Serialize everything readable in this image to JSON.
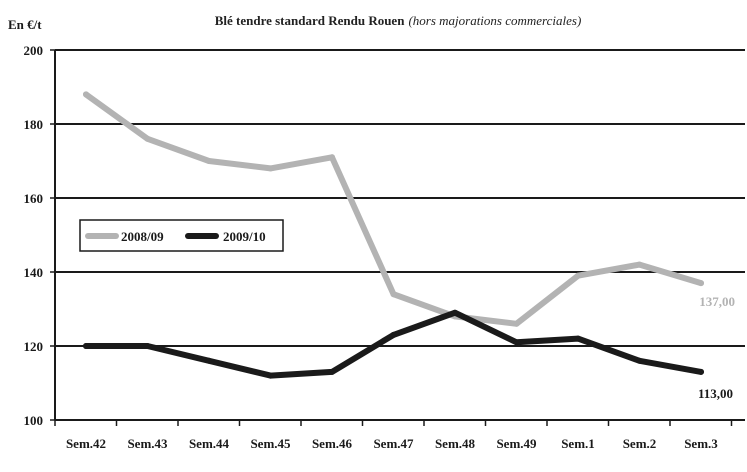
{
  "chart_data": {
    "type": "line",
    "title": "Blé tendre standard Rendu Rouen",
    "subtitle": "(hors majorations commerciales)",
    "ylabel": "En €/t",
    "xlabel": "",
    "ylim": [
      100,
      200
    ],
    "yticks": [
      100,
      120,
      140,
      160,
      180,
      200
    ],
    "categories": [
      "Sem.42",
      "Sem.43",
      "Sem.44",
      "Sem.45",
      "Sem.46",
      "Sem.47",
      "Sem.48",
      "Sem.49",
      "Sem.1",
      "Sem.2",
      "Sem.3"
    ],
    "grid": true,
    "legend_position": "middle-left",
    "series": [
      {
        "name": "2008/09",
        "color": "#b3b3b3",
        "values": [
          188,
          176,
          170,
          168,
          171,
          134,
          128,
          126,
          139,
          142,
          137
        ],
        "end_label": "137,00"
      },
      {
        "name": "2009/10",
        "color": "#1a1a1a",
        "values": [
          120,
          120,
          116,
          112,
          113,
          123,
          129,
          121,
          122,
          116,
          113
        ],
        "end_label": "113,00"
      }
    ]
  }
}
